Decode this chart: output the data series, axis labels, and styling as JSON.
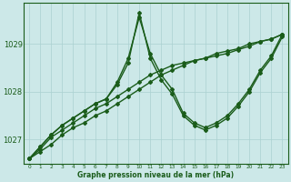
{
  "xlabel": "Graphe pression niveau de la mer (hPa)",
  "bg_color": "#cce8e8",
  "line_color": "#1a5c1a",
  "grid_color": "#aad0d0",
  "x_values": [
    0,
    1,
    2,
    3,
    4,
    5,
    6,
    7,
    8,
    9,
    10,
    11,
    12,
    13,
    14,
    15,
    16,
    17,
    18,
    19,
    20,
    21,
    22,
    23
  ],
  "series": [
    [
      1026.6,
      1026.75,
      1026.9,
      1027.1,
      1027.25,
      1027.35,
      1027.5,
      1027.6,
      1027.75,
      1027.9,
      1028.05,
      1028.2,
      1028.35,
      1028.45,
      1028.55,
      1028.65,
      1028.7,
      1028.8,
      1028.85,
      1028.9,
      1029.0,
      1029.05,
      1029.1,
      1029.2
    ],
    [
      1026.6,
      1026.8,
      1027.05,
      1027.2,
      1027.35,
      1027.5,
      1027.65,
      1027.75,
      1027.9,
      1028.05,
      1028.2,
      1028.35,
      1028.45,
      1028.55,
      1028.6,
      1028.65,
      1028.7,
      1028.75,
      1028.8,
      1028.88,
      1028.95,
      1029.05,
      1029.1,
      1029.2
    ],
    [
      1026.6,
      1026.85,
      1027.1,
      1027.3,
      1027.45,
      1027.6,
      1027.75,
      1027.85,
      1028.2,
      1028.7,
      1029.55,
      1028.8,
      1028.35,
      1028.05,
      1027.55,
      1027.35,
      1027.25,
      1027.35,
      1027.5,
      1027.75,
      1028.05,
      1028.45,
      1028.75,
      1029.2
    ],
    [
      1026.6,
      1026.85,
      1027.1,
      1027.3,
      1027.45,
      1027.6,
      1027.75,
      1027.85,
      1028.15,
      1028.6,
      1029.65,
      1028.7,
      1028.25,
      1027.95,
      1027.5,
      1027.3,
      1027.2,
      1027.3,
      1027.45,
      1027.7,
      1028.0,
      1028.4,
      1028.7,
      1029.15
    ]
  ],
  "ylim": [
    1026.5,
    1029.85
  ],
  "yticks": [
    1027,
    1028,
    1029
  ],
  "ytick_label_top": "1029",
  "marker": "D",
  "markersize": 2.0,
  "linewidth": 1.0
}
